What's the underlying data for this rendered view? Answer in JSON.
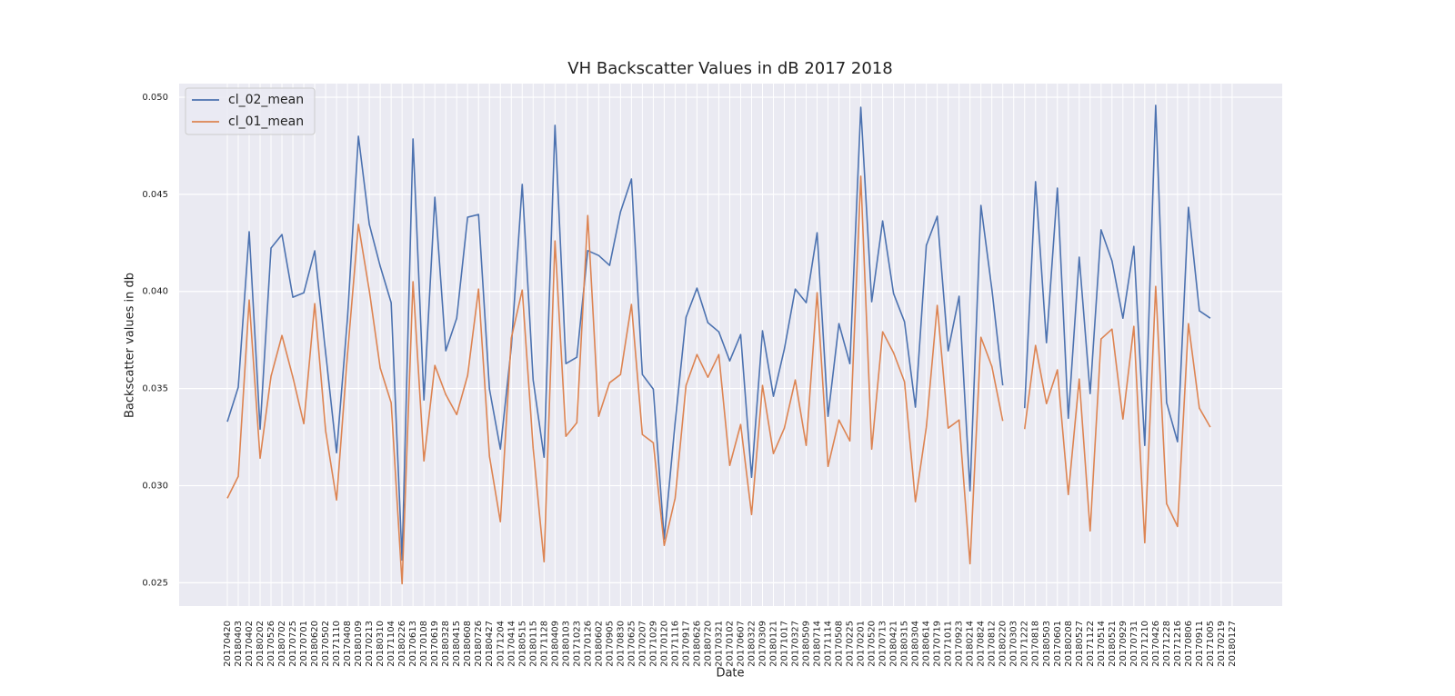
{
  "chart_data": {
    "type": "line",
    "title": "VH Backscatter Values in dB 2017 2018",
    "x_label": "Date",
    "y_label": "Backscatter values in db",
    "categories": [
      "20170420",
      "20180403",
      "20170402",
      "20180202",
      "20170526",
      "20180702",
      "20170725",
      "20170701",
      "20180620",
      "20170502",
      "20171110",
      "20170408",
      "20180109",
      "20170213",
      "20180310",
      "20171104",
      "20180226",
      "20170613",
      "20170108",
      "20170619",
      "20180328",
      "20180415",
      "20180608",
      "20180726",
      "20180427",
      "20171204",
      "20170414",
      "20180515",
      "20180115",
      "20171128",
      "20180409",
      "20180103",
      "20171023",
      "20170126",
      "20180602",
      "20170905",
      "20170830",
      "20170625",
      "20170207",
      "20171029",
      "20170120",
      "20171116",
      "20170917",
      "20180626",
      "20180720",
      "20170321",
      "20170102",
      "20170607",
      "20180322",
      "20170309",
      "20180121",
      "20171017",
      "20170327",
      "20180509",
      "20180714",
      "20171114",
      "20170508",
      "20170225",
      "20170201",
      "20170520",
      "20170713",
      "20180421",
      "20180315",
      "20180304",
      "20180614",
      "20170719",
      "20171011",
      "20170923",
      "20180214",
      "20170824",
      "20170812",
      "20180220",
      "20170303",
      "20171222",
      "20170818",
      "20180503",
      "20170601",
      "20180208",
      "20180527",
      "20171122",
      "20170514",
      "20180521",
      "20170929",
      "20170731",
      "20171210",
      "20170426",
      "20171228",
      "20171216",
      "20170806",
      "20170911",
      "20171005",
      "20170219",
      "20180127"
    ],
    "series": [
      {
        "name": "cl_02_mean",
        "color": "#4c72b0",
        "values": [
          0.03329,
          0.03507,
          0.04307,
          0.03291,
          0.04223,
          0.04293,
          0.0397,
          0.03993,
          0.04209,
          0.03684,
          0.03169,
          0.03862,
          0.04799,
          0.04345,
          0.04129,
          0.03942,
          0.02617,
          0.04785,
          0.03441,
          0.04485,
          0.03694,
          0.03862,
          0.04382,
          0.04396,
          0.03497,
          0.03188,
          0.03713,
          0.04551,
          0.03544,
          0.03146,
          0.04855,
          0.03628,
          0.03661,
          0.0421,
          0.04185,
          0.04134,
          0.0441,
          0.04579,
          0.03572,
          0.03497,
          0.02725,
          0.03324,
          0.03867,
          0.04017,
          0.03839,
          0.03792,
          0.03642,
          0.03778,
          0.03043,
          0.03797,
          0.0346,
          0.03703,
          0.04012,
          0.03942,
          0.04302,
          0.03357,
          0.03834,
          0.03628,
          0.04948,
          0.03947,
          0.04363,
          0.03989,
          0.03844,
          0.03404,
          0.04237,
          0.04387,
          0.03694,
          0.03975,
          0.02973,
          0.04443,
          0.04012,
          0.03516,
          null,
          0.03399,
          0.04565,
          0.03736,
          0.04532,
          0.03347,
          0.04176,
          0.03474,
          0.04317,
          0.04157,
          0.03862,
          0.04232,
          0.03207,
          0.04958,
          0.03427,
          0.03226,
          0.04433,
          0.039,
          0.03862,
          null,
          null
        ]
      },
      {
        "name": "cl_01_mean",
        "color": "#dd8452",
        "values": [
          0.02935,
          0.03048,
          0.03956,
          0.03141,
          0.03563,
          0.03773,
          0.03558,
          0.03319,
          0.03937,
          0.03282,
          0.02926,
          0.03675,
          0.04345,
          0.04003,
          0.03605,
          0.03427,
          0.02495,
          0.0405,
          0.03127,
          0.03619,
          0.03469,
          0.03366,
          0.03567,
          0.04012,
          0.03151,
          0.02814,
          0.03759,
          0.04007,
          0.03193,
          0.02608,
          0.0426,
          0.03254,
          0.03324,
          0.04391,
          0.03357,
          0.0353,
          0.03572,
          0.03933,
          0.03263,
          0.03221,
          0.02692,
          0.02935,
          0.03516,
          0.03675,
          0.03558,
          0.03675,
          0.03104,
          0.03315,
          0.02851,
          0.03516,
          0.03165,
          0.03296,
          0.03544,
          0.03207,
          0.03993,
          0.03099,
          0.03338,
          0.0323,
          0.04593,
          0.03188,
          0.03792,
          0.03684,
          0.03535,
          0.02917,
          0.03301,
          0.03928,
          0.03296,
          0.03338,
          0.02598,
          0.03764,
          0.03614,
          0.03333,
          null,
          0.03291,
          0.03722,
          0.03422,
          0.03596,
          0.02954,
          0.03549,
          0.02767,
          0.03755,
          0.03806,
          0.03343,
          0.0382,
          0.02706,
          0.04026,
          0.02907,
          0.0279,
          0.03834,
          0.03399,
          0.03301,
          null,
          null
        ]
      }
    ],
    "ylim": [
      0.0238,
      0.0507
    ],
    "yticks": [
      0.025,
      {
        "value": 0.03,
        "label": "0.030"
      },
      0.035,
      {
        "value": 0.04,
        "label": "0.040"
      },
      0.045,
      {
        "value": 0.05,
        "label": "0.050"
      }
    ],
    "grid": true,
    "legend": "upper left"
  }
}
